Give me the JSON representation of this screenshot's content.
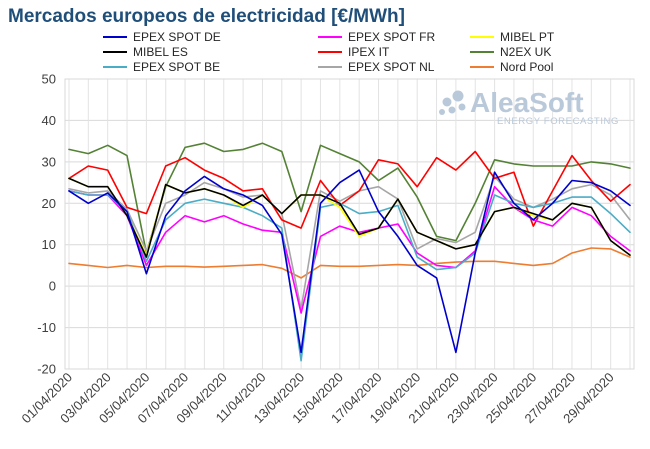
{
  "chart_data": {
    "type": "line",
    "title": "Mercados europeos de electricidad [€/MWh]",
    "xlabel": "",
    "ylabel": "",
    "ylim": [
      -20,
      50
    ],
    "yticks": [
      -20,
      -10,
      0,
      10,
      20,
      30,
      40,
      50
    ],
    "grid": true,
    "legend_position": "top",
    "x": [
      "01/04/2020",
      "02/04/2020",
      "03/04/2020",
      "04/04/2020",
      "05/04/2020",
      "06/04/2020",
      "07/04/2020",
      "08/04/2020",
      "09/04/2020",
      "10/04/2020",
      "11/04/2020",
      "12/04/2020",
      "13/04/2020",
      "14/04/2020",
      "15/04/2020",
      "16/04/2020",
      "17/04/2020",
      "18/04/2020",
      "19/04/2020",
      "20/04/2020",
      "21/04/2020",
      "22/04/2020",
      "23/04/2020",
      "24/04/2020",
      "25/04/2020",
      "26/04/2020",
      "27/04/2020",
      "28/04/2020",
      "29/04/2020",
      "30/04/2020"
    ],
    "xtick_labels": [
      "01/04/2020",
      "03/04/2020",
      "05/04/2020",
      "07/04/2020",
      "09/04/2020",
      "11/04/2020",
      "13/04/2020",
      "15/04/2020",
      "17/04/2020",
      "19/04/2020",
      "21/04/2020",
      "23/04/2020",
      "25/04/2020",
      "27/04/2020",
      "29/04/2020"
    ],
    "series": [
      {
        "name": "EPEX SPOT DE",
        "color": "#0000cc",
        "values": [
          23,
          20,
          22.5,
          18,
          3,
          17,
          23,
          26.5,
          23.5,
          22,
          19.5,
          12.5,
          -16,
          20,
          25,
          28,
          18,
          12,
          5,
          2,
          -16,
          8,
          27.5,
          20,
          16,
          20,
          25.5,
          25,
          23,
          19.5
        ]
      },
      {
        "name": "MIBEL ES",
        "color": "#000000",
        "values": [
          26,
          24,
          24,
          17,
          7,
          24.5,
          22.5,
          23.5,
          22,
          19.5,
          22,
          17.5,
          22,
          22,
          20,
          12.5,
          14,
          21,
          13,
          11,
          9,
          10,
          18,
          19,
          17.5,
          16,
          20,
          19,
          11,
          7.5
        ]
      },
      {
        "name": "EPEX SPOT BE",
        "color": "#4bacc6",
        "values": [
          23,
          22,
          22,
          18,
          6,
          16,
          20,
          21,
          20,
          19,
          17,
          14,
          -18,
          19,
          20,
          17.5,
          18,
          19.5,
          7,
          4,
          4.5,
          8,
          22,
          20,
          19,
          20,
          21.5,
          21.5,
          17.5,
          13
        ]
      },
      {
        "name": "EPEX SPOT FR",
        "color": "#ff00ff",
        "values": [
          23,
          22,
          22,
          17,
          5,
          13,
          17,
          15.5,
          17,
          15,
          13.5,
          13,
          -6.5,
          12,
          14.5,
          13,
          14,
          15,
          8,
          5,
          4.5,
          8.5,
          24,
          19,
          16,
          14.5,
          19,
          17,
          12,
          8.5
        ]
      },
      {
        "name": "IPEX IT",
        "color": "#ff0000",
        "values": [
          26,
          29,
          28,
          19,
          17.5,
          29,
          31,
          28,
          26,
          23,
          23.5,
          16,
          14,
          25.5,
          19.5,
          23,
          30.5,
          29.5,
          24,
          31,
          28,
          32.5,
          26,
          27.5,
          14.5,
          23,
          31.5,
          25.5,
          20.5,
          24.5
        ]
      },
      {
        "name": "EPEX SPOT NL",
        "color": "#a6a6a6",
        "values": [
          23.5,
          22.5,
          23,
          18.5,
          8.5,
          20,
          22,
          25,
          23.5,
          21.5,
          22,
          17.5,
          -5.5,
          23,
          20.5,
          23,
          24,
          21,
          9,
          11.5,
          10.5,
          13,
          26.5,
          21,
          19,
          21,
          23.5,
          24.5,
          22,
          16
        ]
      },
      {
        "name": "MIBEL PT",
        "color": "#ffff00",
        "values": [
          26,
          24,
          24,
          17,
          7.5,
          24.5,
          22.5,
          23.5,
          22,
          19,
          22,
          17.5,
          22,
          22,
          19,
          12,
          14,
          21,
          13,
          11,
          9,
          10,
          18,
          19,
          17,
          16,
          20,
          19,
          11,
          7.5
        ]
      },
      {
        "name": "N2EX UK",
        "color": "#548235",
        "values": [
          33,
          32,
          34,
          31.5,
          8,
          24,
          33.5,
          34.5,
          32.5,
          33,
          34.5,
          32.5,
          18,
          34,
          32,
          30,
          25.5,
          28.5,
          21.5,
          12,
          11,
          20,
          30.5,
          29.5,
          29,
          29,
          29,
          30,
          29.5,
          28.5
        ]
      },
      {
        "name": "Nord Pool",
        "color": "#ed7d31",
        "values": [
          5.5,
          5,
          4.5,
          5,
          4.5,
          4.8,
          4.8,
          4.6,
          4.8,
          5,
          5.2,
          4.3,
          2,
          5,
          4.8,
          4.8,
          5,
          5.2,
          5,
          5.5,
          5.8,
          6,
          6,
          5.5,
          5,
          5.5,
          8,
          9.2,
          9,
          7
        ]
      }
    ],
    "legend_order": [
      "EPEX SPOT DE",
      "EPEX SPOT FR",
      "MIBEL PT",
      "MIBEL ES",
      "IPEX IT",
      "N2EX UK",
      "EPEX SPOT BE",
      "EPEX SPOT NL",
      "Nord Pool"
    ],
    "draw_order": [
      "Nord Pool",
      "N2EX UK",
      "EPEX SPOT NL",
      "IPEX IT",
      "EPEX SPOT FR",
      "EPEX SPOT BE",
      "MIBEL PT",
      "MIBEL ES",
      "EPEX SPOT DE"
    ]
  },
  "logo": {
    "name": "AleaSoft",
    "tagline": "ENERGY FORECASTING",
    "color": "#b9c9da"
  }
}
